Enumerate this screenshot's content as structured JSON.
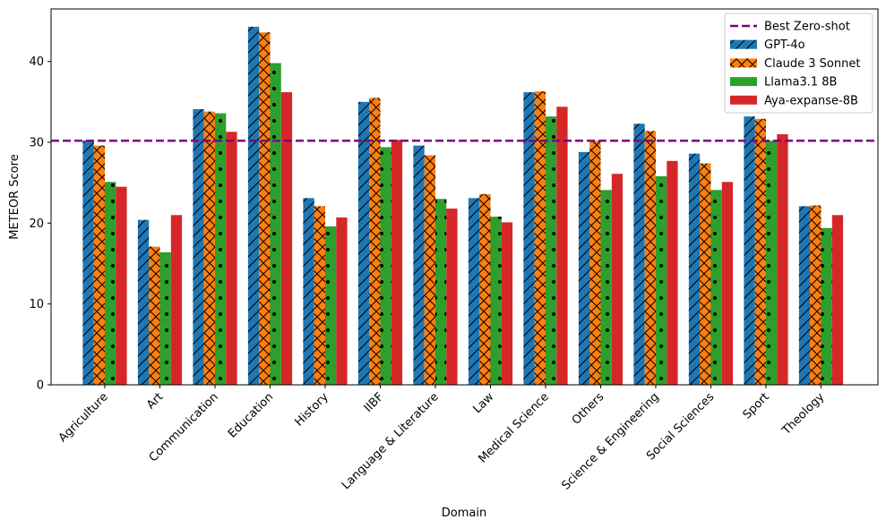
{
  "chart_data": {
    "type": "bar",
    "xlabel": "Domain",
    "ylabel": "METEOR Score",
    "ylim": [
      0,
      46.5
    ],
    "yticks": [
      0,
      10,
      20,
      30,
      40
    ],
    "categories": [
      "Agriculture",
      "Art",
      "Communication",
      "Education",
      "History",
      "IIBF",
      "Language & Literature",
      "Law",
      "Medical Science",
      "Others",
      "Science & Engineering",
      "Social Sciences",
      "Sport",
      "Theology"
    ],
    "series": [
      {
        "name": "GPT-4o",
        "color": "#1f77b4",
        "hatch": "diagonal",
        "values": [
          30.2,
          20.4,
          34.1,
          44.3,
          23.1,
          35.0,
          29.6,
          23.1,
          36.2,
          28.8,
          32.3,
          28.6,
          33.2,
          22.1
        ]
      },
      {
        "name": "Claude 3 Sonnet",
        "color": "#ff7f0e",
        "hatch": "cross",
        "values": [
          29.6,
          17.1,
          33.8,
          43.6,
          22.1,
          35.5,
          28.4,
          23.6,
          36.3,
          30.2,
          31.4,
          27.4,
          32.9,
          22.2
        ]
      },
      {
        "name": "Llama3.1 8B",
        "color": "#2ca02c",
        "hatch": "dots",
        "values": [
          25.1,
          16.4,
          33.6,
          39.8,
          19.6,
          29.4,
          23.0,
          20.8,
          33.2,
          24.1,
          25.8,
          24.1,
          30.2,
          19.4
        ]
      },
      {
        "name": "Aya-expanse-8B",
        "color": "#d62728",
        "hatch": "none",
        "values": [
          24.5,
          21.0,
          31.3,
          36.2,
          20.7,
          30.3,
          21.8,
          20.1,
          34.4,
          26.1,
          27.7,
          25.1,
          31.0,
          21.0
        ]
      }
    ],
    "reference_line": {
      "name": "Best Zero-shot",
      "value": 30.2,
      "color": "#800080",
      "style": "dashed"
    },
    "legend_position": "top-right",
    "grid": false
  }
}
